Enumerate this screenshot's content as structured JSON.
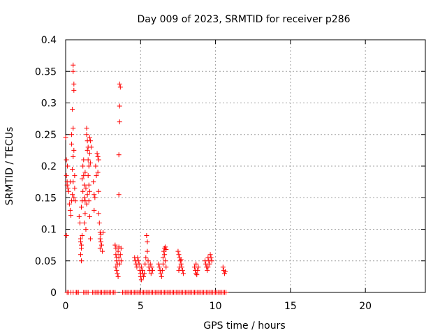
{
  "chart_data": {
    "type": "scatter",
    "title": "Day 009 of 2023, SRMTID for receiver p286",
    "xlabel": "GPS time / hours",
    "ylabel": "SRMTID / TECUs",
    "xlim": [
      0,
      24
    ],
    "ylim": [
      0,
      0.4
    ],
    "xticks": [
      0,
      5,
      10,
      15,
      20
    ],
    "xtick_labels": [
      "0",
      "5",
      "10",
      "15",
      "20"
    ],
    "yticks": [
      0,
      0.05,
      0.1,
      0.15,
      0.2,
      0.25,
      0.3,
      0.35,
      0.4
    ],
    "ytick_labels": [
      "0",
      "0.05",
      "0.1",
      "0.15",
      "0.2",
      "0.25",
      "0.3",
      "0.35",
      "0.4"
    ],
    "grid": true,
    "marker": "plus",
    "series": [
      {
        "name": "SRMTID",
        "color": "#ff0000",
        "points": [
          [
            0.0,
            0.245
          ],
          [
            0.05,
            0.21
          ],
          [
            0.05,
            0.185
          ],
          [
            0.1,
            0.175
          ],
          [
            0.1,
            0.17
          ],
          [
            0.12,
            0.2
          ],
          [
            0.15,
            0.165
          ],
          [
            0.05,
            0.09
          ],
          [
            0.2,
            0.16
          ],
          [
            0.25,
            0.14
          ],
          [
            0.3,
            0.175
          ],
          [
            0.3,
            0.13
          ],
          [
            0.35,
            0.122
          ],
          [
            0.4,
            0.25
          ],
          [
            0.4,
            0.235
          ],
          [
            0.45,
            0.195
          ],
          [
            0.45,
            0.29
          ],
          [
            0.5,
            0.36
          ],
          [
            0.5,
            0.35
          ],
          [
            0.55,
            0.33
          ],
          [
            0.55,
            0.32
          ],
          [
            0.5,
            0.26
          ],
          [
            0.55,
            0.225
          ],
          [
            0.5,
            0.215
          ],
          [
            0.5,
            0.175
          ],
          [
            0.55,
            0.15
          ],
          [
            0.6,
            0.165
          ],
          [
            0.65,
            0.145
          ],
          [
            0.6,
            0.185
          ],
          [
            0.45,
            0.155
          ],
          [
            0.4,
            0.145
          ],
          [
            0.9,
            0.12
          ],
          [
            0.95,
            0.11
          ],
          [
            1.0,
            0.085
          ],
          [
            1.0,
            0.08
          ],
          [
            1.05,
            0.075
          ],
          [
            1.05,
            0.07
          ],
          [
            1.0,
            0.06
          ],
          [
            1.05,
            0.05
          ],
          [
            1.1,
            0.09
          ],
          [
            1.05,
            0.135
          ],
          [
            1.1,
            0.145
          ],
          [
            1.15,
            0.16
          ],
          [
            1.1,
            0.18
          ],
          [
            1.15,
            0.2
          ],
          [
            1.2,
            0.21
          ],
          [
            1.2,
            0.185
          ],
          [
            1.25,
            0.17
          ],
          [
            1.25,
            0.15
          ],
          [
            1.3,
            0.145
          ],
          [
            1.3,
            0.125
          ],
          [
            1.25,
            0.11
          ],
          [
            1.35,
            0.1
          ],
          [
            1.35,
            0.165
          ],
          [
            1.3,
            0.19
          ],
          [
            1.4,
            0.26
          ],
          [
            1.4,
            0.25
          ],
          [
            1.45,
            0.24
          ],
          [
            1.45,
            0.225
          ],
          [
            1.5,
            0.23
          ],
          [
            1.5,
            0.21
          ],
          [
            1.55,
            0.2
          ],
          [
            1.5,
            0.185
          ],
          [
            1.55,
            0.17
          ],
          [
            1.6,
            0.245
          ],
          [
            1.65,
            0.24
          ],
          [
            1.6,
            0.22
          ],
          [
            1.65,
            0.205
          ],
          [
            1.6,
            0.16
          ],
          [
            1.55,
            0.145
          ],
          [
            1.6,
            0.12
          ],
          [
            1.65,
            0.085
          ],
          [
            1.7,
            0.23
          ],
          [
            1.45,
            0.155
          ],
          [
            1.4,
            0.14
          ],
          [
            1.85,
            0.175
          ],
          [
            1.9,
            0.155
          ],
          [
            1.95,
            0.15
          ],
          [
            1.9,
            0.13
          ],
          [
            2.0,
            0.2
          ],
          [
            2.05,
            0.185
          ],
          [
            2.1,
            0.22
          ],
          [
            2.15,
            0.215
          ],
          [
            2.2,
            0.21
          ],
          [
            2.15,
            0.19
          ],
          [
            2.2,
            0.16
          ],
          [
            2.2,
            0.125
          ],
          [
            2.25,
            0.11
          ],
          [
            2.3,
            0.095
          ],
          [
            2.35,
            0.092
          ],
          [
            2.3,
            0.085
          ],
          [
            2.35,
            0.08
          ],
          [
            2.4,
            0.075
          ],
          [
            2.3,
            0.07
          ],
          [
            2.45,
            0.065
          ],
          [
            2.5,
            0.095
          ],
          [
            3.3,
            0.075
          ],
          [
            3.35,
            0.07
          ],
          [
            3.35,
            0.06
          ],
          [
            3.4,
            0.055
          ],
          [
            3.4,
            0.05
          ],
          [
            3.45,
            0.045
          ],
          [
            3.35,
            0.04
          ],
          [
            3.4,
            0.035
          ],
          [
            3.45,
            0.03
          ],
          [
            3.5,
            0.025
          ],
          [
            3.5,
            0.065
          ],
          [
            3.55,
            0.072
          ],
          [
            3.55,
            0.055
          ],
          [
            3.6,
            0.33
          ],
          [
            3.65,
            0.325
          ],
          [
            3.6,
            0.295
          ],
          [
            3.6,
            0.27
          ],
          [
            3.55,
            0.218
          ],
          [
            3.55,
            0.155
          ],
          [
            3.65,
            0.06
          ],
          [
            3.7,
            0.07
          ],
          [
            3.7,
            0.05
          ],
          [
            3.6,
            0.045
          ],
          [
            4.6,
            0.055
          ],
          [
            4.65,
            0.05
          ],
          [
            4.7,
            0.045
          ],
          [
            4.75,
            0.04
          ],
          [
            4.8,
            0.055
          ],
          [
            4.85,
            0.05
          ],
          [
            4.9,
            0.045
          ],
          [
            4.95,
            0.035
          ],
          [
            5.0,
            0.03
          ],
          [
            5.0,
            0.025
          ],
          [
            5.05,
            0.02
          ],
          [
            5.1,
            0.03
          ],
          [
            5.15,
            0.035
          ],
          [
            5.05,
            0.04
          ],
          [
            5.2,
            0.025
          ],
          [
            5.25,
            0.03
          ],
          [
            5.3,
            0.045
          ],
          [
            5.35,
            0.055
          ],
          [
            5.4,
            0.09
          ],
          [
            5.45,
            0.08
          ],
          [
            5.45,
            0.065
          ],
          [
            5.5,
            0.05
          ],
          [
            5.55,
            0.04
          ],
          [
            5.6,
            0.035
          ],
          [
            5.65,
            0.045
          ],
          [
            5.7,
            0.03
          ],
          [
            5.75,
            0.04
          ],
          [
            5.8,
            0.035
          ],
          [
            6.2,
            0.045
          ],
          [
            6.25,
            0.04
          ],
          [
            6.3,
            0.035
          ],
          [
            6.35,
            0.03
          ],
          [
            6.4,
            0.025
          ],
          [
            6.45,
            0.035
          ],
          [
            6.5,
            0.045
          ],
          [
            6.5,
            0.055
          ],
          [
            6.55,
            0.065
          ],
          [
            6.6,
            0.07
          ],
          [
            6.65,
            0.072
          ],
          [
            6.7,
            0.068
          ],
          [
            6.6,
            0.06
          ],
          [
            6.65,
            0.05
          ],
          [
            6.7,
            0.04
          ],
          [
            7.5,
            0.065
          ],
          [
            7.55,
            0.06
          ],
          [
            7.6,
            0.055
          ],
          [
            7.65,
            0.05
          ],
          [
            7.7,
            0.045
          ],
          [
            7.75,
            0.04
          ],
          [
            7.8,
            0.035
          ],
          [
            7.85,
            0.03
          ],
          [
            7.55,
            0.035
          ],
          [
            7.6,
            0.04
          ],
          [
            7.7,
            0.052
          ],
          [
            8.6,
            0.04
          ],
          [
            8.65,
            0.035
          ],
          [
            8.7,
            0.03
          ],
          [
            8.75,
            0.028
          ],
          [
            8.8,
            0.035
          ],
          [
            8.85,
            0.04
          ],
          [
            8.7,
            0.045
          ],
          [
            9.3,
            0.05
          ],
          [
            9.35,
            0.045
          ],
          [
            9.4,
            0.04
          ],
          [
            9.45,
            0.035
          ],
          [
            9.5,
            0.055
          ],
          [
            9.55,
            0.05
          ],
          [
            9.6,
            0.045
          ],
          [
            9.65,
            0.06
          ],
          [
            9.7,
            0.055
          ],
          [
            9.75,
            0.05
          ],
          [
            9.5,
            0.04
          ],
          [
            10.5,
            0.04
          ],
          [
            10.55,
            0.035
          ],
          [
            10.6,
            0.03
          ],
          [
            10.65,
            0.033
          ],
          [
            0.1,
            0.0
          ],
          [
            0.2,
            0.0
          ],
          [
            0.35,
            0.0
          ],
          [
            0.5,
            0.0
          ],
          [
            0.7,
            0.0
          ],
          [
            0.75,
            0.0
          ],
          [
            0.85,
            0.0
          ],
          [
            1.2,
            0.0
          ],
          [
            1.3,
            0.0
          ],
          [
            1.4,
            0.0
          ],
          [
            1.5,
            0.0
          ],
          [
            1.8,
            0.0
          ],
          [
            1.9,
            0.0
          ],
          [
            2.0,
            0.0
          ],
          [
            2.1,
            0.0
          ],
          [
            2.2,
            0.0
          ],
          [
            2.3,
            0.0
          ],
          [
            2.4,
            0.0
          ],
          [
            2.5,
            0.0
          ],
          [
            2.6,
            0.0
          ],
          [
            2.7,
            0.0
          ],
          [
            2.8,
            0.0
          ],
          [
            2.9,
            0.0
          ],
          [
            3.0,
            0.0
          ],
          [
            3.1,
            0.0
          ],
          [
            3.2,
            0.0
          ],
          [
            3.3,
            0.0
          ],
          [
            3.8,
            0.0
          ],
          [
            3.9,
            0.0
          ],
          [
            4.0,
            0.0
          ],
          [
            4.1,
            0.0
          ],
          [
            4.2,
            0.0
          ],
          [
            4.3,
            0.0
          ],
          [
            4.4,
            0.0
          ],
          [
            4.5,
            0.0
          ],
          [
            4.6,
            0.0
          ],
          [
            4.7,
            0.0
          ],
          [
            4.8,
            0.0
          ],
          [
            4.9,
            0.0
          ],
          [
            5.0,
            0.0
          ],
          [
            5.1,
            0.0
          ],
          [
            5.2,
            0.0
          ],
          [
            5.3,
            0.0
          ],
          [
            5.4,
            0.0
          ],
          [
            5.5,
            0.0
          ],
          [
            5.6,
            0.0
          ],
          [
            5.7,
            0.0
          ],
          [
            5.8,
            0.0
          ],
          [
            5.9,
            0.0
          ],
          [
            6.0,
            0.0
          ],
          [
            6.1,
            0.0
          ],
          [
            6.2,
            0.0
          ],
          [
            6.3,
            0.0
          ],
          [
            6.4,
            0.0
          ],
          [
            6.5,
            0.0
          ],
          [
            6.6,
            0.0
          ],
          [
            6.7,
            0.0
          ],
          [
            6.8,
            0.0
          ],
          [
            6.9,
            0.0
          ],
          [
            7.0,
            0.0
          ],
          [
            7.1,
            0.0
          ],
          [
            7.2,
            0.0
          ],
          [
            7.3,
            0.0
          ],
          [
            7.4,
            0.0
          ],
          [
            7.5,
            0.0
          ],
          [
            7.6,
            0.0
          ],
          [
            7.7,
            0.0
          ],
          [
            7.8,
            0.0
          ],
          [
            7.9,
            0.0
          ],
          [
            8.0,
            0.0
          ],
          [
            8.1,
            0.0
          ],
          [
            8.2,
            0.0
          ],
          [
            8.3,
            0.0
          ],
          [
            8.4,
            0.0
          ],
          [
            8.5,
            0.0
          ],
          [
            8.6,
            0.0
          ],
          [
            8.7,
            0.0
          ],
          [
            8.8,
            0.0
          ],
          [
            8.9,
            0.0
          ],
          [
            9.0,
            0.0
          ],
          [
            9.1,
            0.0
          ],
          [
            9.2,
            0.0
          ],
          [
            9.3,
            0.0
          ],
          [
            9.4,
            0.0
          ],
          [
            9.5,
            0.0
          ],
          [
            9.6,
            0.0
          ],
          [
            9.7,
            0.0
          ],
          [
            9.8,
            0.0
          ],
          [
            9.9,
            0.0
          ],
          [
            10.0,
            0.0
          ],
          [
            10.1,
            0.0
          ],
          [
            10.2,
            0.0
          ],
          [
            10.3,
            0.0
          ],
          [
            10.4,
            0.0
          ],
          [
            10.5,
            0.0
          ],
          [
            10.6,
            0.0
          ],
          [
            10.7,
            0.0
          ]
        ]
      }
    ]
  }
}
